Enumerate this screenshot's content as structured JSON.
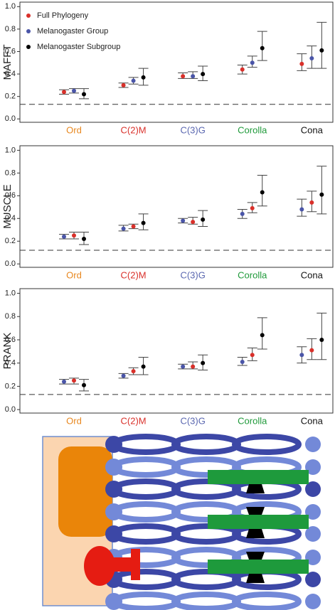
{
  "chart_data": [
    {
      "type": "dotplot",
      "y_label": "MAFFT",
      "categories": [
        "Ord",
        "C(2)M",
        "C(3)G",
        "Corolla",
        "Cona"
      ],
      "category_colors": [
        "#e8871e",
        "#d9302a",
        "#5a67b0",
        "#1f9a3a",
        "#111111"
      ],
      "legend": true,
      "series": [
        {
          "name": "Full Phylogeny",
          "color": "#d9302a",
          "values": [
            0.24,
            0.3,
            0.38,
            0.44,
            0.49
          ],
          "lower": [
            0.22,
            0.28,
            0.36,
            0.4,
            0.43
          ],
          "upper": [
            0.26,
            0.32,
            0.41,
            0.48,
            0.58
          ]
        },
        {
          "name": "Melanogaster Group",
          "color": "#4a55a8",
          "values": [
            0.25,
            0.34,
            0.38,
            0.5,
            0.54
          ],
          "lower": [
            0.23,
            0.31,
            0.36,
            0.46,
            0.45
          ],
          "upper": [
            0.27,
            0.37,
            0.42,
            0.56,
            0.65
          ]
        },
        {
          "name": "Melanogaster Subgroup",
          "color": "#000000",
          "values": [
            0.22,
            0.37,
            0.4,
            0.63,
            0.61
          ],
          "lower": [
            0.18,
            0.3,
            0.34,
            0.52,
            0.45
          ],
          "upper": [
            0.27,
            0.45,
            0.47,
            0.78,
            0.86
          ]
        }
      ],
      "reference_line": 0.13,
      "ylim": [
        -0.03,
        1.04
      ],
      "yticks": [
        {
          "value": 0,
          "label": "0.0"
        },
        0.2,
        0.4,
        0.6,
        0.8,
        {
          "value": 1,
          "label": "1.0"
        }
      ]
    },
    {
      "type": "dotplot",
      "y_label": "MUSCLE",
      "categories": [
        "Ord",
        "C(2)M",
        "C(3)G",
        "Corolla",
        "Cona"
      ],
      "category_colors": [
        "#e8871e",
        "#d9302a",
        "#5a67b0",
        "#1f9a3a",
        "#111111"
      ],
      "legend": false,
      "series": [
        {
          "color": "#4a55a8",
          "values": [
            0.24,
            0.31,
            0.38,
            0.44,
            0.48
          ],
          "lower": [
            0.22,
            0.29,
            0.36,
            0.4,
            0.42
          ],
          "upper": [
            0.26,
            0.34,
            0.4,
            0.48,
            0.57
          ]
        },
        {
          "color": "#d9302a",
          "values": [
            0.25,
            0.33,
            0.37,
            0.49,
            0.54
          ],
          "lower": [
            0.22,
            0.31,
            0.35,
            0.45,
            0.46
          ],
          "upper": [
            0.28,
            0.35,
            0.41,
            0.54,
            0.64
          ]
        },
        {
          "color": "#000000",
          "values": [
            0.22,
            0.36,
            0.39,
            0.63,
            0.61
          ],
          "lower": [
            0.17,
            0.3,
            0.33,
            0.51,
            0.44
          ],
          "upper": [
            0.28,
            0.44,
            0.47,
            0.78,
            0.86
          ]
        }
      ],
      "reference_line": 0.12,
      "ylim": [
        -0.03,
        1.04
      ],
      "yticks": [
        {
          "value": 0,
          "label": "0.0"
        },
        0.2,
        0.4,
        0.6,
        0.8,
        {
          "value": 1,
          "label": "1.0"
        }
      ]
    },
    {
      "type": "dotplot",
      "y_label": "PRANK",
      "categories": [
        "Ord",
        "C(2)M",
        "C(3)G",
        "Corolla",
        "Cona"
      ],
      "category_colors": [
        "#e8871e",
        "#d9302a",
        "#5a67b0",
        "#1f9a3a",
        "#111111"
      ],
      "legend": false,
      "series": [
        {
          "color": "#4a55a8",
          "values": [
            0.24,
            0.29,
            0.37,
            0.41,
            0.47
          ],
          "lower": [
            0.22,
            0.27,
            0.35,
            0.38,
            0.4
          ],
          "upper": [
            0.26,
            0.31,
            0.39,
            0.45,
            0.54
          ]
        },
        {
          "color": "#d9302a",
          "values": [
            0.25,
            0.33,
            0.37,
            0.47,
            0.51
          ],
          "lower": [
            0.22,
            0.3,
            0.35,
            0.42,
            0.43
          ],
          "upper": [
            0.27,
            0.36,
            0.41,
            0.53,
            0.61
          ]
        },
        {
          "color": "#000000",
          "values": [
            0.21,
            0.37,
            0.4,
            0.64,
            0.6
          ],
          "lower": [
            0.16,
            0.3,
            0.34,
            0.52,
            0.43
          ],
          "upper": [
            0.26,
            0.45,
            0.47,
            0.79,
            0.83
          ]
        }
      ],
      "reference_line": 0.13,
      "ylim": [
        -0.03,
        1.04
      ],
      "yticks": [
        {
          "value": 0,
          "label": "0.0"
        },
        0.2,
        0.4,
        0.6,
        0.8,
        {
          "value": 1,
          "label": "1.0"
        }
      ]
    }
  ]
}
